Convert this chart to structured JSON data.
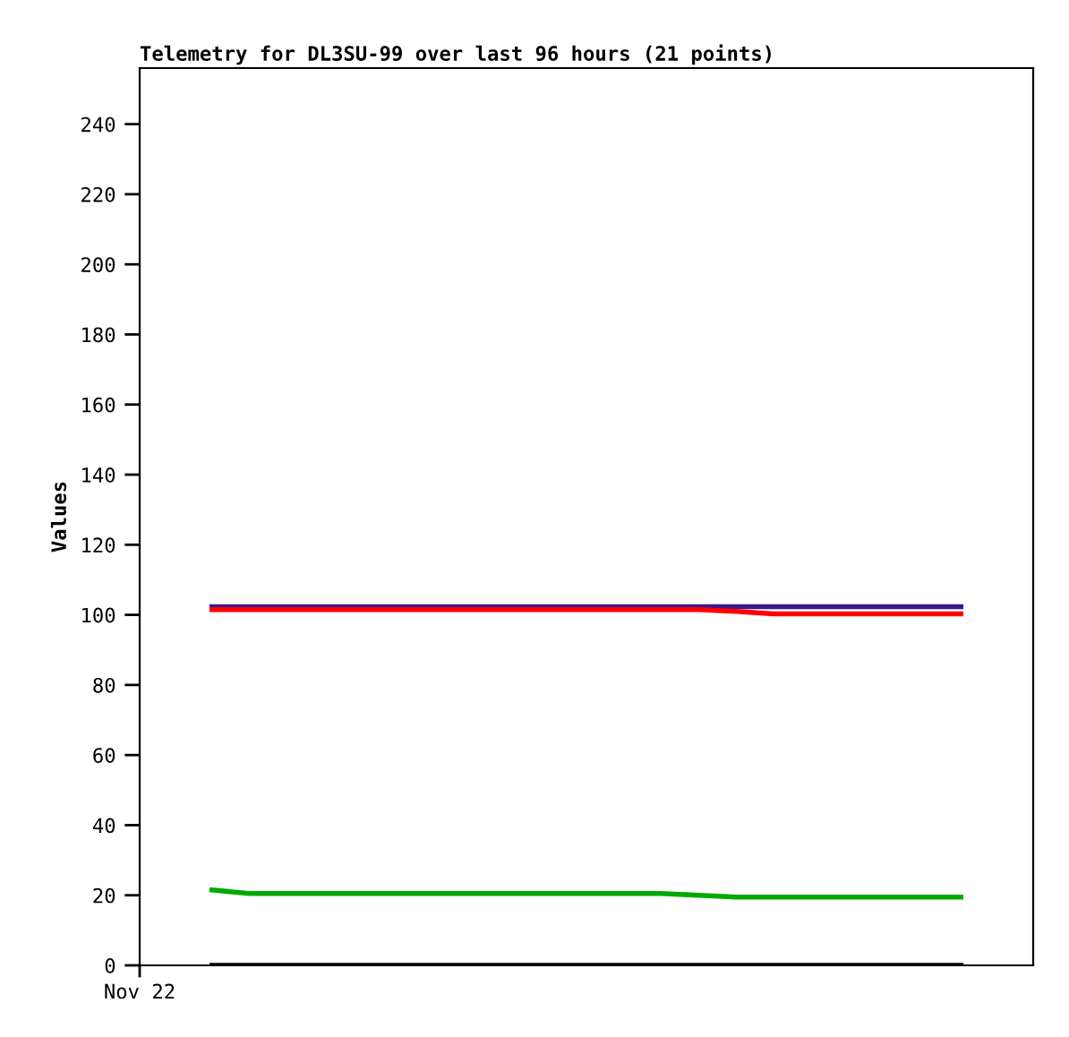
{
  "chart_data": {
    "type": "line",
    "title": "Telemetry for DL3SU-99 over last 96 hours (21 points)",
    "ylabel": "Values",
    "categories": [
      null,
      null,
      null,
      null,
      null,
      null,
      null,
      null,
      null,
      null,
      null,
      null,
      null,
      null,
      null,
      null,
      null,
      null,
      null,
      null,
      null
    ],
    "annotations": [
      "Nov 22"
    ],
    "tick_labels": "y",
    "ylim": [
      0,
      256
    ],
    "yticks": [
      0,
      20,
      40,
      60,
      80,
      100,
      120,
      140,
      160,
      180,
      200,
      220,
      240
    ],
    "marker": "none",
    "line_style": "solid",
    "series": [
      {
        "color": "#3a1a8a",
        "values": [
          102.3,
          102.3,
          102.3,
          102.3,
          102.3,
          102.3,
          102.3,
          102.3,
          102.3,
          102.3,
          102.3,
          102.3,
          102.3,
          102.3,
          102.3,
          102.3,
          102.3,
          102.3,
          102.3,
          102.3,
          102.3
        ]
      },
      {
        "color": "#ff0000",
        "values": [
          101.5,
          101.5,
          101.5,
          101.5,
          101.5,
          101.5,
          101.5,
          101.5,
          101.5,
          101.5,
          101.5,
          101.5,
          101.5,
          101.5,
          101,
          100.3,
          100.3,
          100.3,
          100.3,
          100.3,
          100.3
        ]
      },
      {
        "color": "#00aa00",
        "values": [
          21.5,
          20.5,
          20.5,
          20.5,
          20.5,
          20.5,
          20.5,
          20.5,
          20.5,
          20.5,
          20.5,
          20.5,
          20.5,
          20,
          19.5,
          19.5,
          19.5,
          19.5,
          19.5,
          19.5,
          19.5
        ]
      },
      {
        "color": "#000000",
        "values": [
          0,
          0,
          0,
          0,
          0,
          0,
          0,
          0,
          0,
          0,
          0,
          0,
          0,
          0,
          0,
          0,
          0,
          0,
          0,
          0,
          0
        ]
      }
    ]
  }
}
